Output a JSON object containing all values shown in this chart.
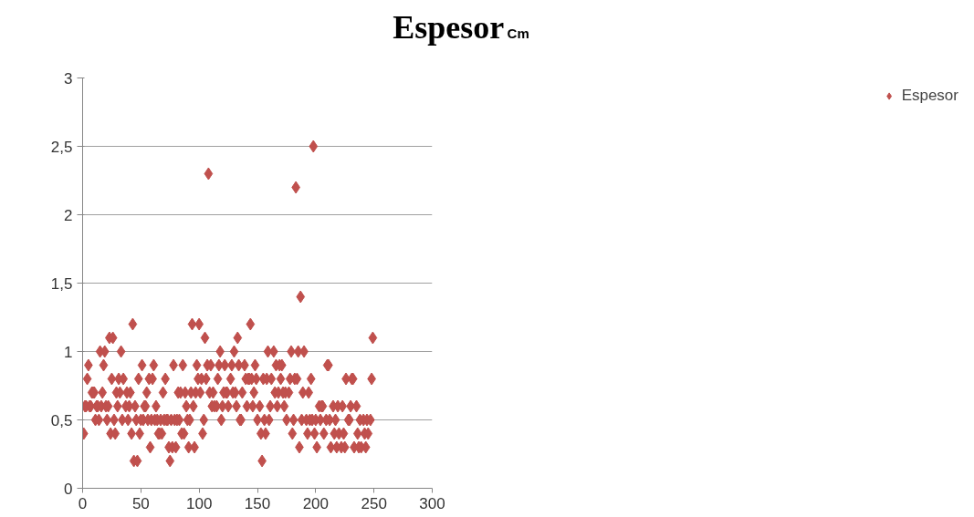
{
  "chart_data": {
    "type": "scatter",
    "title": "Espesor",
    "subtitle": "Cm",
    "series": [
      {
        "name": "Espesor",
        "color": "#c0504d",
        "x": [
          1,
          2,
          3,
          4,
          5,
          6,
          7,
          8,
          9,
          10,
          11,
          12,
          13,
          14,
          15,
          16,
          17,
          18,
          19,
          20,
          21,
          22,
          23,
          24,
          25,
          26,
          27,
          28,
          29,
          30,
          31,
          32,
          33,
          34,
          35,
          37,
          38,
          39,
          40,
          41,
          42,
          43,
          44,
          45,
          46,
          47,
          48,
          49,
          50,
          51,
          52,
          53,
          54,
          55,
          56,
          57,
          58,
          59,
          60,
          61,
          62,
          63,
          64,
          65,
          66,
          67,
          68,
          69,
          70,
          71,
          72,
          73,
          74,
          75,
          76,
          77,
          78,
          79,
          80,
          81,
          82,
          83,
          84,
          85,
          86,
          87,
          88,
          89,
          90,
          91,
          92,
          93,
          94,
          95,
          96,
          97,
          98,
          99,
          100,
          101,
          102,
          103,
          104,
          105,
          106,
          107,
          108,
          109,
          110,
          111,
          112,
          113,
          115,
          116,
          117,
          118,
          119,
          120,
          121,
          122,
          123,
          124,
          125,
          127,
          128,
          129,
          130,
          131,
          132,
          133,
          134,
          135,
          136,
          137,
          139,
          140,
          141,
          142,
          143,
          144,
          145,
          146,
          147,
          148,
          149,
          150,
          152,
          153,
          154,
          155,
          156,
          157,
          158,
          159,
          160,
          161,
          162,
          164,
          165,
          166,
          167,
          168,
          169,
          170,
          171,
          172,
          173,
          174,
          175,
          177,
          178,
          179,
          180,
          181,
          182,
          183,
          184,
          185,
          186,
          187,
          188,
          189,
          190,
          192,
          193,
          194,
          195,
          196,
          197,
          198,
          199,
          200,
          201,
          203,
          204,
          205,
          206,
          207,
          209,
          210,
          211,
          212,
          213,
          215,
          216,
          217,
          218,
          219,
          220,
          222,
          223,
          224,
          225,
          226,
          228,
          229,
          230,
          231,
          232,
          233,
          235,
          236,
          237,
          238,
          239,
          241,
          242,
          243,
          244,
          245,
          247,
          248,
          249
        ],
        "values": [
          0.4,
          0.6,
          0.6,
          0.8,
          0.9,
          0.6,
          0.6,
          0.7,
          0.7,
          0.7,
          0.5,
          0.6,
          0.6,
          0.5,
          1.0,
          0.6,
          0.7,
          0.9,
          1.0,
          0.6,
          0.5,
          0.6,
          1.1,
          0.4,
          0.8,
          1.1,
          0.5,
          0.4,
          0.7,
          0.6,
          0.8,
          0.7,
          1.0,
          0.5,
          0.8,
          0.6,
          0.7,
          0.5,
          0.6,
          0.7,
          0.4,
          1.2,
          0.2,
          0.6,
          0.5,
          0.2,
          0.8,
          0.4,
          0.5,
          0.9,
          0.5,
          0.6,
          0.6,
          0.7,
          0.5,
          0.8,
          0.3,
          0.5,
          0.8,
          0.9,
          0.5,
          0.6,
          0.5,
          0.4,
          0.4,
          0.5,
          0.4,
          0.7,
          0.5,
          0.8,
          0.5,
          0.5,
          0.3,
          0.2,
          0.5,
          0.3,
          0.9,
          0.5,
          0.3,
          0.5,
          0.7,
          0.5,
          0.7,
          0.4,
          0.9,
          0.4,
          0.7,
          0.6,
          0.5,
          0.3,
          0.5,
          0.7,
          1.2,
          0.6,
          0.3,
          0.7,
          0.9,
          0.8,
          1.2,
          0.7,
          0.8,
          0.4,
          0.5,
          1.1,
          0.8,
          0.9,
          2.3,
          0.7,
          0.9,
          0.6,
          0.7,
          0.6,
          0.6,
          0.8,
          0.9,
          1.0,
          0.5,
          0.6,
          0.7,
          0.9,
          0.7,
          0.7,
          0.6,
          0.8,
          0.9,
          0.7,
          1.0,
          0.7,
          0.6,
          1.1,
          0.9,
          0.5,
          0.5,
          0.7,
          0.9,
          0.8,
          0.6,
          0.8,
          0.8,
          1.2,
          0.8,
          0.6,
          0.7,
          0.9,
          0.8,
          0.5,
          0.6,
          0.4,
          0.2,
          0.8,
          0.5,
          0.4,
          0.8,
          1.0,
          0.5,
          0.6,
          0.8,
          1.0,
          0.7,
          0.9,
          0.6,
          0.7,
          0.9,
          0.8,
          0.9,
          0.7,
          0.6,
          0.7,
          0.5,
          0.7,
          0.8,
          1.0,
          0.4,
          0.5,
          0.8,
          2.2,
          0.8,
          1.0,
          0.3,
          1.4,
          0.5,
          0.7,
          1.0,
          0.5,
          0.4,
          0.7,
          0.5,
          0.8,
          0.5,
          2.5,
          0.4,
          0.5,
          0.3,
          0.6,
          0.5,
          0.6,
          0.6,
          0.4,
          0.5,
          0.9,
          0.9,
          0.5,
          0.3,
          0.6,
          0.4,
          0.5,
          0.3,
          0.6,
          0.4,
          0.3,
          0.6,
          0.4,
          0.3,
          0.8,
          0.5,
          0.5,
          0.6,
          0.8,
          0.8,
          0.3,
          0.6,
          0.4,
          0.3,
          0.5,
          0.3,
          0.5,
          0.4,
          0.3,
          0.5,
          0.4,
          0.5,
          0.8,
          1.1
        ]
      }
    ],
    "xlim": [
      0,
      300
    ],
    "xticks": [
      0,
      50,
      100,
      150,
      200,
      250,
      300
    ],
    "ylim": [
      0,
      3
    ],
    "yticks": [
      0,
      {
        "value": 0.5,
        "label": "0,5"
      },
      1,
      {
        "value": 1.5,
        "label": "1,5"
      },
      2,
      {
        "value": 2.5,
        "label": "2,5"
      },
      3
    ],
    "grid": "y",
    "legend": "right",
    "marker": "diamond"
  }
}
